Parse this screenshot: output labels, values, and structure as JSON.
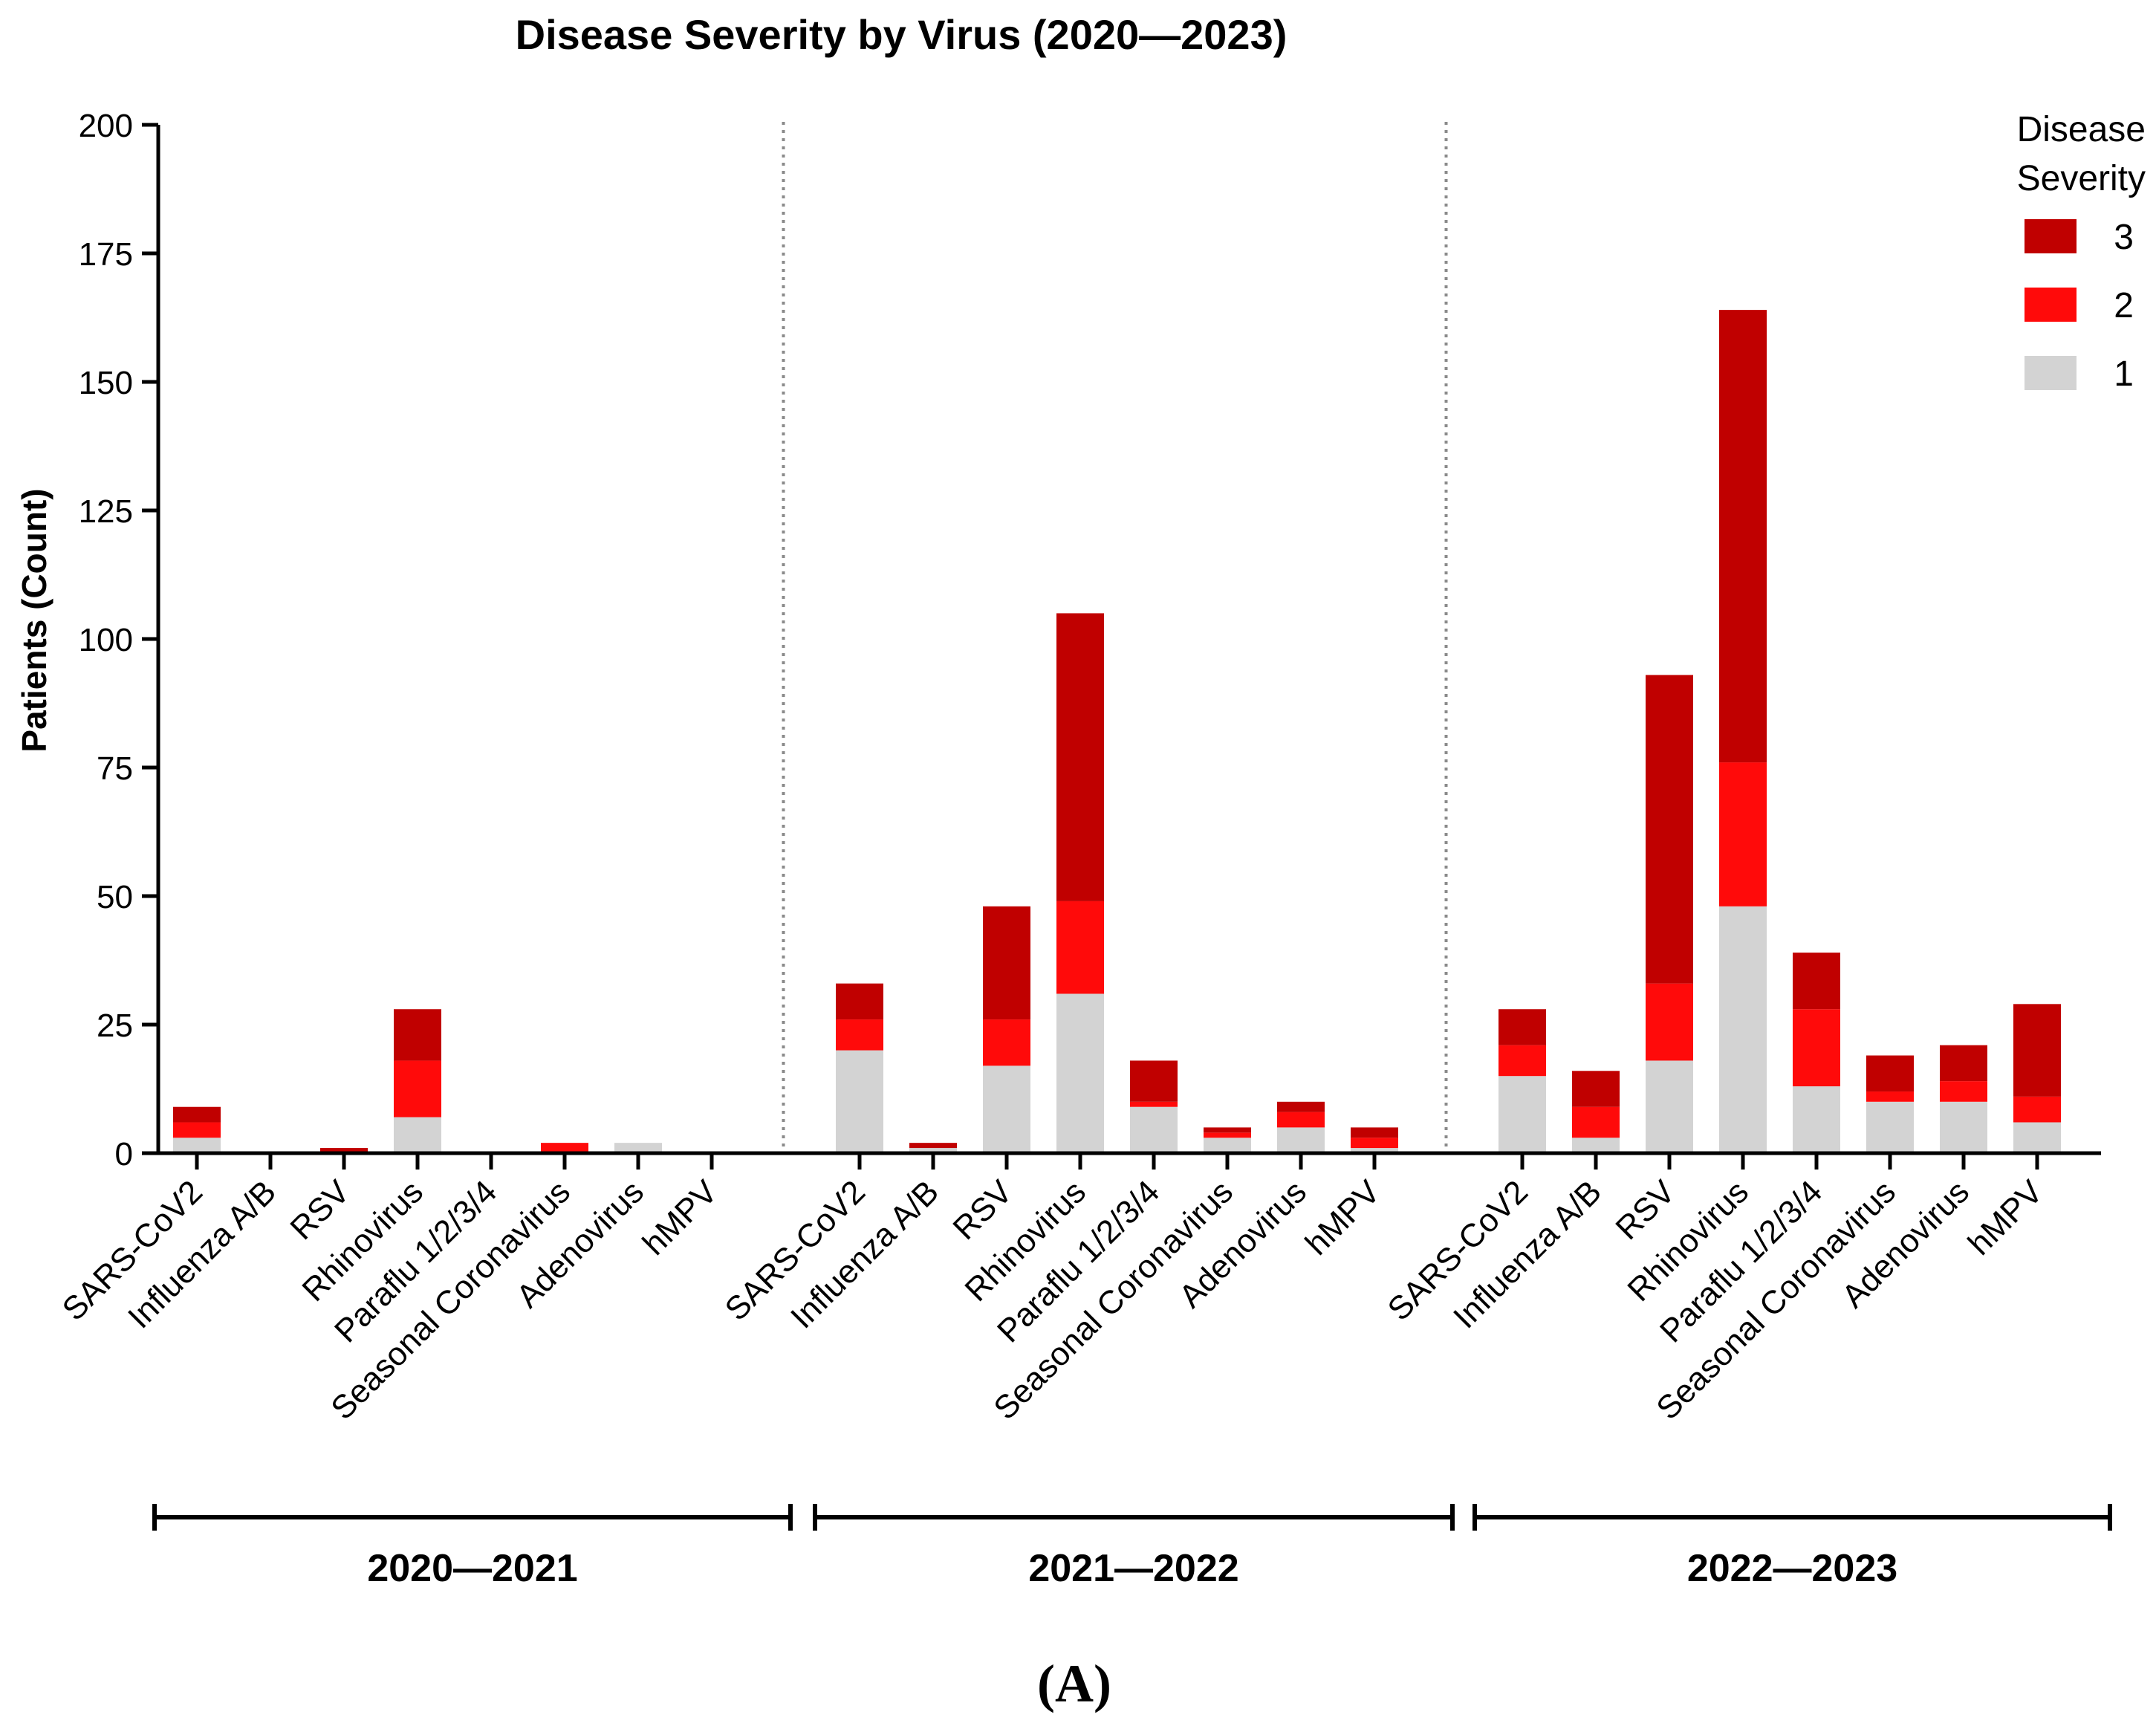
{
  "chart_data": {
    "type": "bar",
    "stacked": true,
    "title": "Disease Severity by Virus (2020—2023)",
    "ylabel": "Patients  (Count)",
    "xlabel": "",
    "ylim": [
      0,
      200
    ],
    "yticks": [
      "0",
      "25",
      "50",
      "75",
      "100",
      "125",
      "150",
      "175",
      "200"
    ],
    "legend": {
      "title_line1": "Disease",
      "title_line2": "Severity",
      "placement": "top-right",
      "entries": [
        "3",
        "2",
        "1"
      ]
    },
    "colors": {
      "severity_1": "#d3d3d3",
      "severity_2": "#ff0a0a",
      "severity_3": "#c00000",
      "axis": "#000000",
      "divider": "#8a8a8a"
    },
    "categories": [
      "SARS-CoV2",
      "Influenza A/B",
      "RSV",
      "Rhinovirus",
      "Paraflu 1/2/3/4",
      "Seasonal Coronavirus",
      "Adenovirus",
      "hMPV"
    ],
    "groups": [
      {
        "label": "2020—2021",
        "series": [
          {
            "name": "1",
            "values": [
              3,
              0,
              0,
              7,
              0,
              0,
              2,
              0
            ]
          },
          {
            "name": "2",
            "values": [
              3,
              0,
              0,
              11,
              0,
              2,
              0,
              0
            ]
          },
          {
            "name": "3",
            "values": [
              3,
              0,
              1,
              10,
              0,
              0,
              0,
              0
            ]
          }
        ]
      },
      {
        "label": "2021—2022",
        "series": [
          {
            "name": "1",
            "values": [
              20,
              1,
              17,
              31,
              9,
              3,
              5,
              1
            ]
          },
          {
            "name": "2",
            "values": [
              6,
              0,
              9,
              18,
              1,
              1,
              3,
              2
            ]
          },
          {
            "name": "3",
            "values": [
              7,
              1,
              22,
              56,
              8,
              1,
              2,
              2
            ]
          }
        ]
      },
      {
        "label": "2022—2023",
        "series": [
          {
            "name": "1",
            "values": [
              15,
              3,
              18,
              48,
              13,
              10,
              10,
              6
            ]
          },
          {
            "name": "2",
            "values": [
              6,
              6,
              15,
              28,
              15,
              2,
              4,
              5
            ]
          },
          {
            "name": "3",
            "values": [
              7,
              7,
              60,
              88,
              11,
              7,
              7,
              18
            ]
          }
        ]
      }
    ],
    "panel_label": "(A)"
  }
}
